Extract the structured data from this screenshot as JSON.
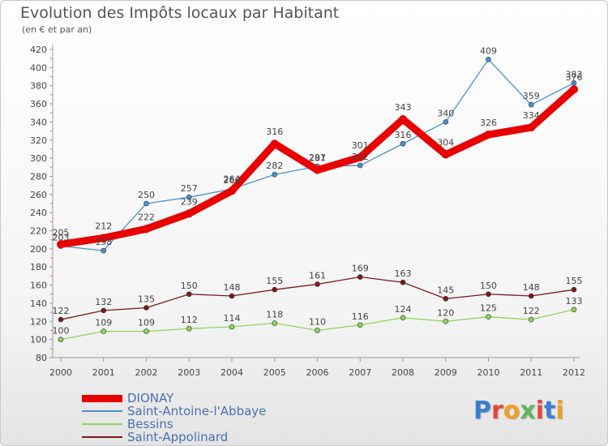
{
  "header": {
    "title": "Evolution des Impôts locaux par Habitant",
    "subtitle": "(en € et par an)"
  },
  "logo": {
    "text": "Proxiti",
    "colors": [
      "#3a7fd0",
      "#e8463c",
      "#f0a020",
      "#5cb85c",
      "#e8463c",
      "#3a7fd0",
      "#f0a020"
    ]
  },
  "chart_data": {
    "type": "line",
    "title": "Evolution des Impôts locaux par Habitant",
    "subtitle": "(en € et par an)",
    "xlabel": "",
    "ylabel": "",
    "ylim": [
      80,
      420
    ],
    "yticks": [
      80,
      100,
      120,
      140,
      160,
      180,
      200,
      220,
      240,
      260,
      280,
      300,
      320,
      340,
      360,
      380,
      400,
      420
    ],
    "grid": false,
    "legend_position": "bottom-left",
    "x": [
      "2000",
      "2001",
      "2002",
      "2003",
      "2004",
      "2005",
      "2006",
      "2007",
      "2008",
      "2009",
      "2010",
      "2011",
      "2012"
    ],
    "series": [
      {
        "name": "DIONAY",
        "color": "#e80000",
        "thick": true,
        "values": [
          205,
          212,
          222,
          239,
          264,
          316,
          287,
          301,
          343,
          304,
          326,
          334,
          376
        ],
        "labels": [
          "205",
          "212",
          "222",
          "239",
          "264",
          "316",
          "287",
          "301",
          "343",
          "304",
          "326",
          "334",
          "376"
        ]
      },
      {
        "name": "Saint-Antoine-l'Abbaye",
        "color": "#4a90d0",
        "thick": false,
        "values": [
          203,
          198,
          250,
          257,
          266,
          282,
          291,
          292,
          316,
          340,
          409,
          359,
          383
        ],
        "labels": [
          "203",
          "198",
          "250",
          "257",
          "266",
          "282",
          "291",
          "292",
          "316",
          "340",
          "409",
          "359",
          "383"
        ]
      },
      {
        "name": "Bessins",
        "color": "#8ed65a",
        "thick": false,
        "values": [
          100,
          109,
          109,
          112,
          114,
          118,
          110,
          116,
          124,
          120,
          125,
          122,
          133
        ],
        "labels": [
          "100",
          "109",
          "109",
          "112",
          "114",
          "118",
          "110",
          "116",
          "124",
          "120",
          "125",
          "122",
          "133"
        ]
      },
      {
        "name": "Saint-Appolinard",
        "color": "#7a1a1a",
        "thick": false,
        "values": [
          122,
          132,
          135,
          150,
          148,
          155,
          161,
          169,
          163,
          145,
          150,
          148,
          155
        ],
        "labels": [
          "122",
          "132",
          "135",
          "150",
          "148",
          "155",
          "161",
          "169",
          "163",
          "145",
          "150",
          "148",
          "155"
        ]
      }
    ]
  }
}
